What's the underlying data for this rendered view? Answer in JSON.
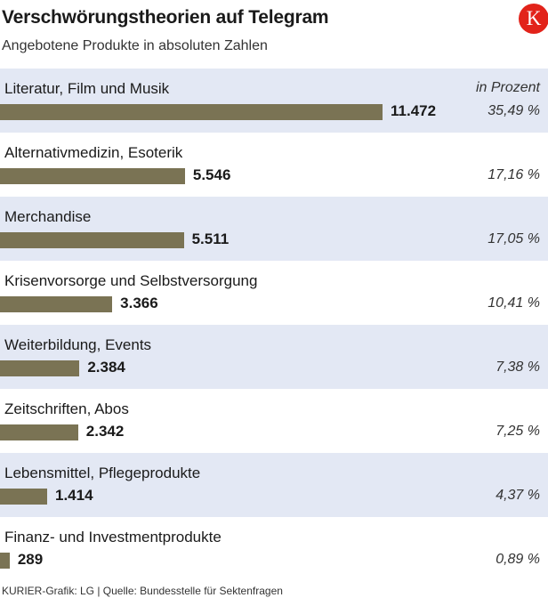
{
  "header": {
    "title": "Verschwörungstheorien auf Telegram",
    "subtitle": "Angebotene Produkte in absoluten Zahlen",
    "logo_letter": "K",
    "percent_header": "in Prozent"
  },
  "colors": {
    "bar": "#7a7354",
    "row_shade": "#e3e8f4",
    "logo": "#e2231a"
  },
  "chart_data": {
    "type": "bar",
    "orientation": "horizontal",
    "title": "Verschwörungstheorien auf Telegram",
    "subtitle": "Angebotene Produkte in absoluten Zahlen",
    "categories": [
      "Literatur, Film und Musik",
      "Alternativmedizin, Esoterik",
      "Merchandise",
      "Krisenvorsorge und Selbstversorgung",
      "Weiterbildung, Events",
      "Zeitschriften, Abos",
      "Lebensmittel, Pflegeprodukte",
      "Finanz- und Investmentprodukte"
    ],
    "values": [
      11472,
      5546,
      5511,
      3366,
      2384,
      2342,
      1414,
      289
    ],
    "value_labels": [
      "11.472",
      "5.546",
      "5.511",
      "3.366",
      "2.384",
      "2.342",
      "1.414",
      "289"
    ],
    "percent_labels": [
      "35,49 %",
      "17,16 %",
      "17,05 %",
      "10,41 %",
      "7,38 %",
      "7,25 %",
      "4,37 %",
      "0,89 %"
    ],
    "xlim": [
      0,
      13000
    ],
    "grid": false
  },
  "footer": {
    "source": "KURIER-Grafik: LG | Quelle: Bundesstelle für Sektenfragen"
  }
}
